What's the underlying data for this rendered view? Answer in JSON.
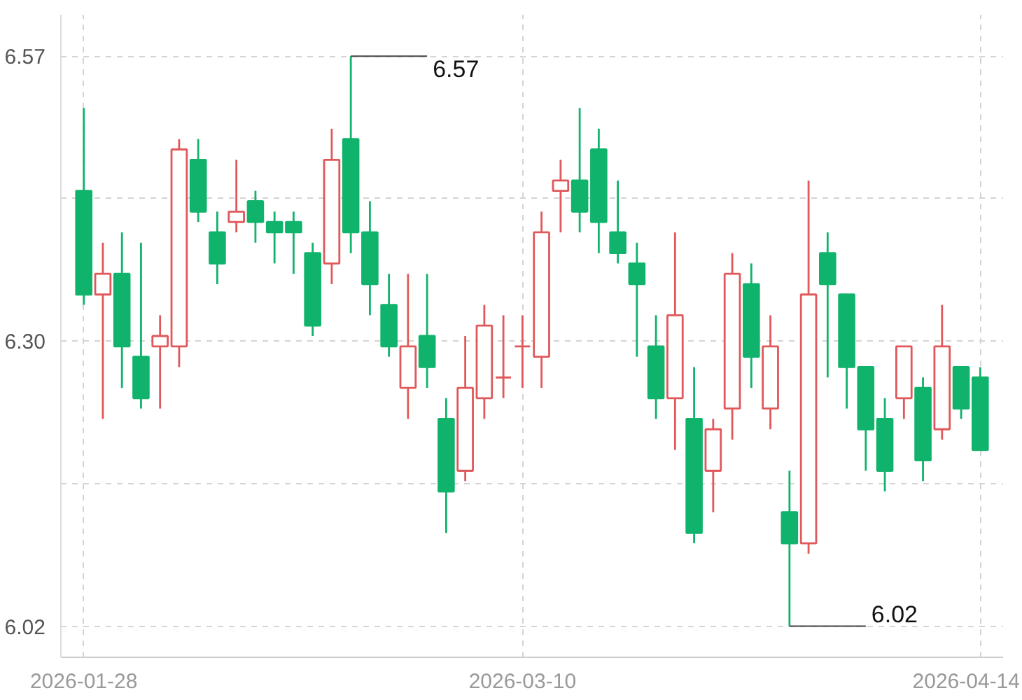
{
  "chart_data": {
    "type": "candlestick",
    "categories": [
      "2026-01-28",
      null,
      null,
      null,
      null,
      null,
      null,
      null,
      null,
      null,
      null,
      null,
      null,
      null,
      null,
      null,
      null,
      null,
      null,
      null,
      null,
      null,
      null,
      "2026-03-10",
      null,
      null,
      null,
      null,
      null,
      null,
      null,
      null,
      null,
      null,
      null,
      null,
      null,
      null,
      null,
      null,
      null,
      null,
      null,
      null,
      null,
      null,
      null,
      "2026-04-14"
    ],
    "ohlc": [
      [
        6.44,
        6.52,
        6.33,
        6.34
      ],
      [
        6.34,
        6.39,
        6.22,
        6.36
      ],
      [
        6.36,
        6.4,
        6.25,
        6.29
      ],
      [
        6.28,
        6.39,
        6.23,
        6.24
      ],
      [
        6.29,
        6.32,
        6.23,
        6.3
      ],
      [
        6.29,
        6.49,
        6.27,
        6.48
      ],
      [
        6.47,
        6.49,
        6.41,
        6.42
      ],
      [
        6.4,
        6.42,
        6.35,
        6.37
      ],
      [
        6.41,
        6.47,
        6.4,
        6.42
      ],
      [
        6.43,
        6.44,
        6.39,
        6.41
      ],
      [
        6.41,
        6.42,
        6.37,
        6.4
      ],
      [
        6.41,
        6.42,
        6.36,
        6.4
      ],
      [
        6.38,
        6.39,
        6.3,
        6.31
      ],
      [
        6.37,
        6.5,
        6.35,
        6.47
      ],
      [
        6.49,
        6.57,
        6.38,
        6.4
      ],
      [
        6.4,
        6.43,
        6.32,
        6.35
      ],
      [
        6.33,
        6.36,
        6.28,
        6.29
      ],
      [
        6.25,
        6.36,
        6.22,
        6.29
      ],
      [
        6.3,
        6.36,
        6.25,
        6.27
      ],
      [
        6.22,
        6.24,
        6.11,
        6.15
      ],
      [
        6.17,
        6.3,
        6.16,
        6.25
      ],
      [
        6.24,
        6.33,
        6.22,
        6.31
      ],
      [
        6.26,
        6.32,
        6.24,
        6.26
      ],
      [
        6.29,
        6.32,
        6.25,
        6.29
      ],
      [
        6.28,
        6.42,
        6.25,
        6.4
      ],
      [
        6.44,
        6.47,
        6.4,
        6.45
      ],
      [
        6.45,
        6.52,
        6.4,
        6.42
      ],
      [
        6.48,
        6.5,
        6.38,
        6.41
      ],
      [
        6.4,
        6.45,
        6.37,
        6.38
      ],
      [
        6.37,
        6.39,
        6.28,
        6.35
      ],
      [
        6.29,
        6.32,
        6.22,
        6.24
      ],
      [
        6.24,
        6.4,
        6.19,
        6.32
      ],
      [
        6.22,
        6.27,
        6.1,
        6.11
      ],
      [
        6.17,
        6.22,
        6.13,
        6.21
      ],
      [
        6.23,
        6.38,
        6.2,
        6.36
      ],
      [
        6.35,
        6.37,
        6.25,
        6.28
      ],
      [
        6.23,
        6.32,
        6.21,
        6.29
      ],
      [
        6.13,
        6.17,
        6.02,
        6.1
      ],
      [
        6.1,
        6.45,
        6.09,
        6.34
      ],
      [
        6.38,
        6.4,
        6.26,
        6.35
      ],
      [
        6.34,
        6.34,
        6.23,
        6.27
      ],
      [
        6.27,
        6.27,
        6.17,
        6.21
      ],
      [
        6.22,
        6.24,
        6.15,
        6.17
      ],
      [
        6.24,
        6.29,
        6.22,
        6.29
      ],
      [
        6.25,
        6.26,
        6.16,
        6.18
      ],
      [
        6.21,
        6.33,
        6.2,
        6.29
      ],
      [
        6.27,
        6.27,
        6.22,
        6.23
      ],
      [
        6.26,
        6.27,
        6.19,
        6.19
      ]
    ],
    "colors": [
      "#10b36b",
      "#e0585a",
      "#10b36b",
      "#10b36b",
      "#e0585a",
      "#e0585a",
      "#10b36b",
      "#10b36b",
      "#e0585a",
      "#10b36b",
      "#10b36b",
      "#10b36b",
      "#10b36b",
      "#e0585a",
      "#10b36b",
      "#10b36b",
      "#10b36b",
      "#e0585a",
      "#10b36b",
      "#10b36b",
      "#e0585a",
      "#e0585a",
      "#e0585a",
      "#e0585a",
      "#e0585a",
      "#e0585a",
      "#10b36b",
      "#10b36b",
      "#10b36b",
      "#10b36b",
      "#10b36b",
      "#e0585a",
      "#10b36b",
      "#e0585a",
      "#e0585a",
      "#10b36b",
      "#e0585a",
      "#10b36b",
      "#e0585a",
      "#10b36b",
      "#10b36b",
      "#10b36b",
      "#10b36b",
      "#e0585a",
      "#10b36b",
      "#e0585a",
      "#10b36b",
      "#10b36b"
    ],
    "ylim": [
      5.99,
      6.61
    ],
    "yticks": [
      6.57,
      {
        "value": 6.4325,
        "label": null
      },
      {
        "value": 6.295,
        "label": "6.30"
      },
      {
        "value": 6.1575,
        "label": null
      },
      6.02
    ],
    "grid": true,
    "ref_lines": [
      {
        "axis": "y",
        "value": 6.57,
        "label": "6.57",
        "color": "#444444"
      },
      {
        "axis": "y",
        "value": 6.02,
        "label": "6.02",
        "color": "#444444"
      }
    ]
  }
}
